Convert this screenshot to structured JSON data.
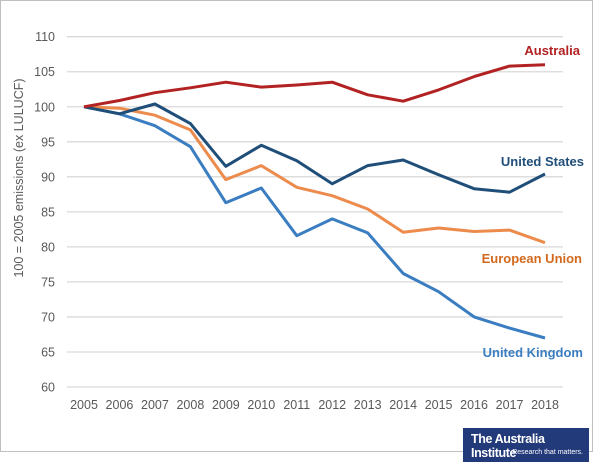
{
  "chart_data": {
    "type": "line",
    "title": "",
    "xlabel": "",
    "ylabel": "100 = 2005 emissions (ex LULUCF)",
    "ylim": [
      60,
      110
    ],
    "yticks": [
      60,
      65,
      70,
      75,
      80,
      85,
      90,
      95,
      100,
      105,
      110
    ],
    "x": [
      2005,
      2006,
      2007,
      2008,
      2009,
      2010,
      2011,
      2012,
      2013,
      2014,
      2015,
      2016,
      2017,
      2018
    ],
    "grid": true,
    "legend": "direct labels at line ends",
    "series": [
      {
        "name": "Australia",
        "color": "#b22222",
        "values": [
          100,
          100.9,
          102.0,
          102.7,
          103.5,
          102.8,
          103.1,
          103.5,
          101.7,
          100.8,
          102.4,
          104.3,
          105.8,
          106.0
        ]
      },
      {
        "name": "United States",
        "color": "#1f4e79",
        "values": [
          100,
          99.0,
          100.4,
          97.6,
          91.5,
          94.5,
          92.3,
          89.0,
          91.6,
          92.4,
          90.3,
          88.3,
          87.8,
          90.4
        ]
      },
      {
        "name": "European Union",
        "color": "#ed8b4c",
        "values": [
          100,
          99.8,
          98.8,
          96.7,
          89.6,
          91.6,
          88.5,
          87.3,
          85.4,
          82.1,
          82.7,
          82.2,
          82.4,
          80.6
        ]
      },
      {
        "name": "United Kingdom",
        "color": "#3a7dc1",
        "values": [
          100,
          99.0,
          97.3,
          94.3,
          86.3,
          88.4,
          81.6,
          84.0,
          82.0,
          76.2,
          73.6,
          70.0,
          68.4,
          67.0
        ]
      }
    ],
    "label_colors": {
      "Australia": "#b22222",
      "United States": "#1f4e79",
      "European Union": "#d2691e",
      "United Kingdom": "#3a7dc1"
    }
  },
  "logo": {
    "name": "The Australia Institute",
    "tagline": "Research that matters."
  }
}
